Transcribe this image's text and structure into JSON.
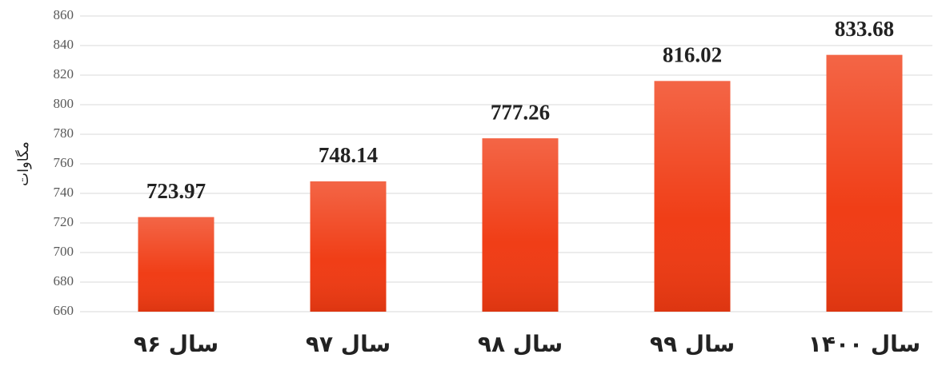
{
  "chart_data": {
    "type": "bar",
    "y_label": "مگاوات",
    "categories": [
      "سال ۹۶",
      "سال ۹۷",
      "سال ۹۸",
      "سال ۹۹",
      "سال ۱۴۰۰"
    ],
    "values": [
      723.97,
      748.14,
      777.26,
      816.02,
      833.68
    ],
    "color": "#f03a12",
    "ylim": [
      660,
      860
    ],
    "yticks": [
      660,
      680,
      700,
      720,
      740,
      760,
      780,
      800,
      820,
      840,
      860
    ],
    "grid": true
  }
}
